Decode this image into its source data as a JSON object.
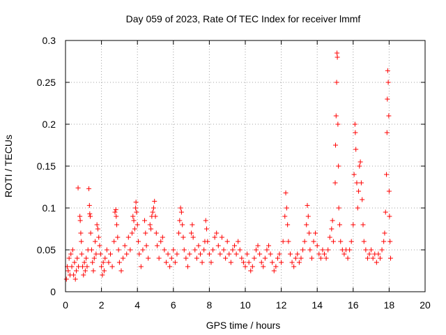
{
  "chart_data": {
    "type": "scatter",
    "title": "Day 059 of 2023, Rate Of TEC Index for receiver lmmf",
    "xlabel": "GPS time / hours",
    "ylabel": "ROTI / TECUs",
    "xlim": [
      0,
      20
    ],
    "ylim": [
      0,
      0.3
    ],
    "xticks": [
      0,
      2,
      4,
      6,
      8,
      10,
      12,
      14,
      16,
      18,
      20
    ],
    "yticks": [
      0,
      0.05,
      0.1,
      0.15,
      0.2,
      0.25,
      0.3
    ],
    "xtick_labels": [
      "0",
      "2",
      "4",
      "6",
      "8",
      "10",
      "12",
      "14",
      "16",
      "18",
      "20"
    ],
    "ytick_labels": [
      "0",
      "0.05",
      "0.1",
      "0.15",
      "0.2",
      "0.25",
      "0.3"
    ],
    "grid": true,
    "marker": "+",
    "color": "#ff0000",
    "series": [
      {
        "values_note": "",
        "points": [
          [
            0.05,
            0.015
          ],
          [
            0.1,
            0.03
          ],
          [
            0.15,
            0.025
          ],
          [
            0.2,
            0.04
          ],
          [
            0.25,
            0.02
          ],
          [
            0.3,
            0.045
          ],
          [
            0.35,
            0.03
          ],
          [
            0.4,
            0.05
          ],
          [
            0.45,
            0.02
          ],
          [
            0.5,
            0.035
          ],
          [
            0.55,
            0.015
          ],
          [
            0.6,
            0.025
          ],
          [
            0.65,
            0.04
          ],
          [
            0.7,
            0.124
          ],
          [
            0.72,
            0.03
          ],
          [
            0.8,
            0.09
          ],
          [
            0.82,
            0.085
          ],
          [
            0.85,
            0.07
          ],
          [
            0.88,
            0.06
          ],
          [
            0.9,
            0.045
          ],
          [
            0.95,
            0.03
          ],
          [
            1.0,
            0.02
          ],
          [
            1.05,
            0.035
          ],
          [
            1.1,
            0.025
          ],
          [
            1.15,
            0.04
          ],
          [
            1.2,
            0.03
          ],
          [
            1.25,
            0.05
          ],
          [
            1.3,
            0.123
          ],
          [
            1.33,
            0.103
          ],
          [
            1.35,
            0.093
          ],
          [
            1.38,
            0.09
          ],
          [
            1.4,
            0.07
          ],
          [
            1.45,
            0.05
          ],
          [
            1.5,
            0.035
          ],
          [
            1.55,
            0.025
          ],
          [
            1.6,
            0.04
          ],
          [
            1.65,
            0.06
          ],
          [
            1.7,
            0.045
          ],
          [
            1.75,
            0.08
          ],
          [
            1.8,
            0.075
          ],
          [
            1.85,
            0.065
          ],
          [
            1.9,
            0.055
          ],
          [
            1.95,
            0.045
          ],
          [
            2.0,
            0.03
          ],
          [
            2.05,
            0.02
          ],
          [
            2.1,
            0.035
          ],
          [
            2.15,
            0.025
          ],
          [
            2.2,
            0.04
          ],
          [
            2.3,
            0.05
          ],
          [
            2.4,
            0.035
          ],
          [
            2.5,
            0.045
          ],
          [
            2.6,
            0.03
          ],
          [
            2.7,
            0.06
          ],
          [
            2.75,
            0.095
          ],
          [
            2.8,
            0.098
          ],
          [
            2.82,
            0.09
          ],
          [
            2.85,
            0.08
          ],
          [
            2.9,
            0.065
          ],
          [
            2.95,
            0.05
          ],
          [
            3.0,
            0.035
          ],
          [
            3.1,
            0.025
          ],
          [
            3.2,
            0.04
          ],
          [
            3.3,
            0.055
          ],
          [
            3.4,
            0.045
          ],
          [
            3.5,
            0.065
          ],
          [
            3.6,
            0.05
          ],
          [
            3.7,
            0.07
          ],
          [
            3.75,
            0.09
          ],
          [
            3.8,
            0.085
          ],
          [
            3.85,
            0.075
          ],
          [
            3.9,
            0.1
          ],
          [
            3.92,
            0.107
          ],
          [
            3.95,
            0.095
          ],
          [
            4.0,
            0.08
          ],
          [
            4.05,
            0.06
          ],
          [
            4.1,
            0.045
          ],
          [
            4.2,
            0.03
          ],
          [
            4.3,
            0.05
          ],
          [
            4.4,
            0.085
          ],
          [
            4.45,
            0.07
          ],
          [
            4.5,
            0.055
          ],
          [
            4.6,
            0.04
          ],
          [
            4.7,
            0.08
          ],
          [
            4.75,
            0.075
          ],
          [
            4.8,
            0.09
          ],
          [
            4.85,
            0.095
          ],
          [
            4.9,
            0.1
          ],
          [
            4.95,
            0.108
          ],
          [
            5.0,
            0.09
          ],
          [
            5.05,
            0.07
          ],
          [
            5.1,
            0.055
          ],
          [
            5.2,
            0.04
          ],
          [
            5.3,
            0.06
          ],
          [
            5.4,
            0.065
          ],
          [
            5.5,
            0.05
          ],
          [
            5.6,
            0.035
          ],
          [
            5.7,
            0.045
          ],
          [
            5.8,
            0.03
          ],
          [
            5.9,
            0.04
          ],
          [
            6.0,
            0.05
          ],
          [
            6.1,
            0.035
          ],
          [
            6.2,
            0.045
          ],
          [
            6.3,
            0.07
          ],
          [
            6.35,
            0.085
          ],
          [
            6.4,
            0.1
          ],
          [
            6.45,
            0.095
          ],
          [
            6.5,
            0.08
          ],
          [
            6.55,
            0.065
          ],
          [
            6.6,
            0.05
          ],
          [
            6.7,
            0.04
          ],
          [
            6.8,
            0.03
          ],
          [
            6.9,
            0.045
          ],
          [
            7.0,
            0.07
          ],
          [
            7.05,
            0.08
          ],
          [
            7.1,
            0.065
          ],
          [
            7.2,
            0.05
          ],
          [
            7.3,
            0.04
          ],
          [
            7.4,
            0.055
          ],
          [
            7.5,
            0.045
          ],
          [
            7.6,
            0.035
          ],
          [
            7.7,
            0.05
          ],
          [
            7.75,
            0.06
          ],
          [
            7.8,
            0.085
          ],
          [
            7.85,
            0.075
          ],
          [
            7.9,
            0.06
          ],
          [
            8.0,
            0.045
          ],
          [
            8.1,
            0.035
          ],
          [
            8.2,
            0.05
          ],
          [
            8.3,
            0.065
          ],
          [
            8.4,
            0.07
          ],
          [
            8.5,
            0.055
          ],
          [
            8.6,
            0.045
          ],
          [
            8.7,
            0.065
          ],
          [
            8.8,
            0.05
          ],
          [
            8.9,
            0.04
          ],
          [
            9.0,
            0.06
          ],
          [
            9.1,
            0.045
          ],
          [
            9.2,
            0.035
          ],
          [
            9.3,
            0.05
          ],
          [
            9.4,
            0.055
          ],
          [
            9.5,
            0.045
          ],
          [
            9.6,
            0.06
          ],
          [
            9.7,
            0.05
          ],
          [
            9.8,
            0.04
          ],
          [
            9.9,
            0.035
          ],
          [
            10.0,
            0.03
          ],
          [
            10.1,
            0.045
          ],
          [
            10.2,
            0.035
          ],
          [
            10.3,
            0.025
          ],
          [
            10.4,
            0.03
          ],
          [
            10.5,
            0.04
          ],
          [
            10.6,
            0.05
          ],
          [
            10.7,
            0.055
          ],
          [
            10.8,
            0.045
          ],
          [
            10.9,
            0.035
          ],
          [
            11.0,
            0.03
          ],
          [
            11.1,
            0.04
          ],
          [
            11.2,
            0.05
          ],
          [
            11.3,
            0.055
          ],
          [
            11.4,
            0.045
          ],
          [
            11.5,
            0.035
          ],
          [
            11.6,
            0.025
          ],
          [
            11.7,
            0.03
          ],
          [
            11.8,
            0.04
          ],
          [
            11.9,
            0.045
          ],
          [
            12.0,
            0.035
          ],
          [
            12.1,
            0.06
          ],
          [
            12.2,
            0.09
          ],
          [
            12.25,
            0.118
          ],
          [
            12.3,
            0.1
          ],
          [
            12.35,
            0.08
          ],
          [
            12.4,
            0.06
          ],
          [
            12.5,
            0.045
          ],
          [
            12.6,
            0.035
          ],
          [
            12.7,
            0.03
          ],
          [
            12.8,
            0.04
          ],
          [
            12.9,
            0.045
          ],
          [
            13.0,
            0.035
          ],
          [
            13.1,
            0.04
          ],
          [
            13.2,
            0.05
          ],
          [
            13.3,
            0.06
          ],
          [
            13.4,
            0.08
          ],
          [
            13.45,
            0.103
          ],
          [
            13.5,
            0.09
          ],
          [
            13.55,
            0.07
          ],
          [
            13.6,
            0.05
          ],
          [
            13.7,
            0.04
          ],
          [
            13.8,
            0.06
          ],
          [
            13.9,
            0.07
          ],
          [
            14.0,
            0.055
          ],
          [
            14.1,
            0.045
          ],
          [
            14.2,
            0.04
          ],
          [
            14.3,
            0.05
          ],
          [
            14.4,
            0.045
          ],
          [
            14.5,
            0.04
          ],
          [
            14.6,
            0.05
          ],
          [
            14.7,
            0.065
          ],
          [
            14.8,
            0.075
          ],
          [
            14.85,
            0.085
          ],
          [
            14.9,
            0.06
          ],
          [
            15.0,
            0.13
          ],
          [
            15.02,
            0.175
          ],
          [
            15.05,
            0.21
          ],
          [
            15.08,
            0.25
          ],
          [
            15.1,
            0.285
          ],
          [
            15.12,
            0.28
          ],
          [
            15.15,
            0.2
          ],
          [
            15.18,
            0.15
          ],
          [
            15.2,
            0.1
          ],
          [
            15.25,
            0.08
          ],
          [
            15.3,
            0.06
          ],
          [
            15.4,
            0.05
          ],
          [
            15.5,
            0.045
          ],
          [
            15.6,
            0.05
          ],
          [
            15.7,
            0.04
          ],
          [
            15.8,
            0.05
          ],
          [
            15.9,
            0.06
          ],
          [
            16.0,
            0.08
          ],
          [
            16.05,
            0.14
          ],
          [
            16.1,
            0.2
          ],
          [
            16.12,
            0.19
          ],
          [
            16.15,
            0.17
          ],
          [
            16.2,
            0.13
          ],
          [
            16.25,
            0.1
          ],
          [
            16.3,
            0.12
          ],
          [
            16.35,
            0.15
          ],
          [
            16.4,
            0.155
          ],
          [
            16.45,
            0.13
          ],
          [
            16.5,
            0.11
          ],
          [
            16.55,
            0.08
          ],
          [
            16.6,
            0.06
          ],
          [
            16.7,
            0.05
          ],
          [
            16.8,
            0.04
          ],
          [
            16.9,
            0.045
          ],
          [
            17.0,
            0.05
          ],
          [
            17.1,
            0.04
          ],
          [
            17.2,
            0.045
          ],
          [
            17.3,
            0.035
          ],
          [
            17.4,
            0.045
          ],
          [
            17.5,
            0.04
          ],
          [
            17.6,
            0.05
          ],
          [
            17.7,
            0.06
          ],
          [
            17.75,
            0.07
          ],
          [
            17.8,
            0.095
          ],
          [
            17.85,
            0.14
          ],
          [
            17.88,
            0.19
          ],
          [
            17.9,
            0.23
          ],
          [
            17.92,
            0.264
          ],
          [
            17.95,
            0.25
          ],
          [
            17.98,
            0.21
          ],
          [
            18.0,
            0.12
          ],
          [
            18.02,
            0.09
          ],
          [
            18.05,
            0.06
          ],
          [
            18.08,
            0.04
          ]
        ]
      }
    ]
  }
}
